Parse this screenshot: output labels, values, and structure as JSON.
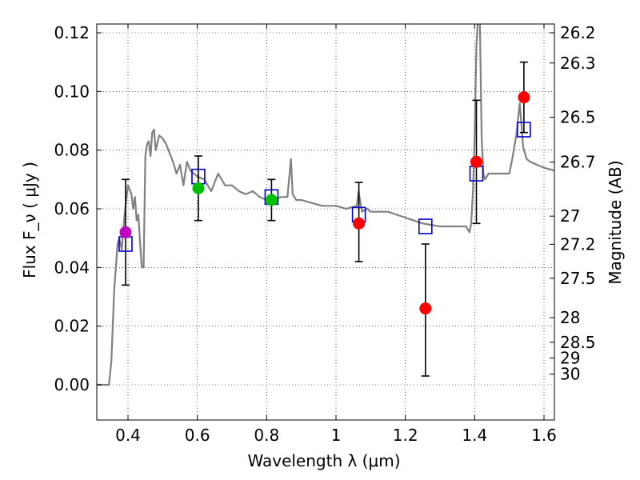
{
  "chart_data": {
    "type": "scatter",
    "xlabel": "Wavelength  λ (μm)",
    "ylabel_left": "Flux  F_ν  ( μJy )",
    "ylabel_right": "Magnitude (AB)",
    "xlim": [
      0.31,
      1.63
    ],
    "ylim": [
      -0.012,
      0.123
    ],
    "grid": true,
    "x_ticks": [
      0.4,
      0.6,
      0.8,
      1.0,
      1.2,
      1.4,
      1.6
    ],
    "x_tick_labels": [
      "0.4",
      "0.6",
      "0.8",
      "1",
      "1.2",
      "1.4",
      "1.6"
    ],
    "y_ticks": [
      0.0,
      0.02,
      0.04,
      0.06,
      0.08,
      0.1,
      0.12
    ],
    "y_tick_labels": [
      "0.00",
      "0.02",
      "0.04",
      "0.06",
      "0.08",
      "0.10",
      "0.12"
    ],
    "right_ticks": [
      {
        "flux": 0.12,
        "label": "26.2"
      },
      {
        "flux": 0.1097,
        "label": "26.3"
      },
      {
        "flux": 0.0912,
        "label": "26.5"
      },
      {
        "flux": 0.0759,
        "label": "26.7"
      },
      {
        "flux": 0.0575,
        "label": "27"
      },
      {
        "flux": 0.0479,
        "label": "27.2"
      },
      {
        "flux": 0.0363,
        "label": "27.5"
      },
      {
        "flux": 0.0229,
        "label": "28"
      },
      {
        "flux": 0.0145,
        "label": "28.5"
      },
      {
        "flux": 0.00912,
        "label": "29"
      },
      {
        "flux": 0.00363,
        "label": "30"
      }
    ],
    "observed": [
      {
        "x": 0.393,
        "y": 0.052,
        "yerr_low": 0.034,
        "yerr_high": 0.07,
        "color": "#bf00bf"
      },
      {
        "x": 0.603,
        "y": 0.067,
        "yerr_low": 0.056,
        "yerr_high": 0.078,
        "color": "#00bf00"
      },
      {
        "x": 0.814,
        "y": 0.063,
        "yerr_low": 0.056,
        "yerr_high": 0.07,
        "color": "#00bf00"
      },
      {
        "x": 1.066,
        "y": 0.055,
        "yerr_low": 0.042,
        "yerr_high": 0.069,
        "color": "#ff0000"
      },
      {
        "x": 1.258,
        "y": 0.026,
        "yerr_low": 0.003,
        "yerr_high": 0.048,
        "color": "#ff0000"
      },
      {
        "x": 1.405,
        "y": 0.076,
        "yerr_low": 0.055,
        "yerr_high": 0.097,
        "color": "#ff0000"
      },
      {
        "x": 1.542,
        "y": 0.098,
        "yerr_low": 0.086,
        "yerr_high": 0.11,
        "color": "#ff0000"
      }
    ],
    "model_points": [
      {
        "x": 0.393,
        "y": 0.048
      },
      {
        "x": 0.603,
        "y": 0.071
      },
      {
        "x": 0.814,
        "y": 0.064
      },
      {
        "x": 1.066,
        "y": 0.058
      },
      {
        "x": 1.258,
        "y": 0.054
      },
      {
        "x": 1.405,
        "y": 0.072
      },
      {
        "x": 1.542,
        "y": 0.087
      }
    ],
    "sed": {
      "color": "#808080",
      "x": [
        0.31,
        0.345,
        0.352,
        0.36,
        0.37,
        0.375,
        0.382,
        0.39,
        0.4,
        0.41,
        0.415,
        0.42,
        0.425,
        0.43,
        0.435,
        0.44,
        0.445,
        0.45,
        0.455,
        0.46,
        0.465,
        0.47,
        0.475,
        0.48,
        0.49,
        0.5,
        0.51,
        0.52,
        0.53,
        0.54,
        0.55,
        0.56,
        0.57,
        0.58,
        0.6,
        0.62,
        0.64,
        0.66,
        0.68,
        0.7,
        0.72,
        0.74,
        0.76,
        0.78,
        0.8,
        0.82,
        0.84,
        0.86,
        0.87,
        0.875,
        0.88,
        0.885,
        0.9,
        0.93,
        0.96,
        1.0,
        1.03,
        1.06,
        1.065,
        1.075,
        1.09,
        1.1,
        1.15,
        1.2,
        1.25,
        1.3,
        1.35,
        1.375,
        1.385,
        1.39,
        1.395,
        1.4,
        1.405,
        1.41,
        1.415,
        1.42,
        1.425,
        1.43,
        1.44,
        1.46,
        1.48,
        1.5,
        1.51,
        1.52,
        1.53,
        1.54,
        1.55,
        1.56,
        1.58,
        1.6,
        1.63
      ],
      "y": [
        0.0,
        0.0,
        0.008,
        0.032,
        0.048,
        0.05,
        0.046,
        0.058,
        0.068,
        0.065,
        0.06,
        0.064,
        0.056,
        0.058,
        0.048,
        0.04,
        0.04,
        0.078,
        0.082,
        0.083,
        0.078,
        0.086,
        0.087,
        0.08,
        0.085,
        0.084,
        0.082,
        0.079,
        0.076,
        0.072,
        0.075,
        0.068,
        0.076,
        0.073,
        0.071,
        0.07,
        0.066,
        0.072,
        0.068,
        0.068,
        0.066,
        0.065,
        0.066,
        0.064,
        0.063,
        0.063,
        0.064,
        0.064,
        0.077,
        0.065,
        0.064,
        0.063,
        0.063,
        0.062,
        0.061,
        0.061,
        0.06,
        0.061,
        0.066,
        0.059,
        0.06,
        0.059,
        0.059,
        0.057,
        0.055,
        0.054,
        0.054,
        0.054,
        0.052,
        0.055,
        0.066,
        0.085,
        0.115,
        0.126,
        0.125,
        0.085,
        0.072,
        0.07,
        0.072,
        0.072,
        0.072,
        0.072,
        0.078,
        0.085,
        0.096,
        0.081,
        0.077,
        0.076,
        0.075,
        0.074,
        0.073
      ]
    }
  }
}
